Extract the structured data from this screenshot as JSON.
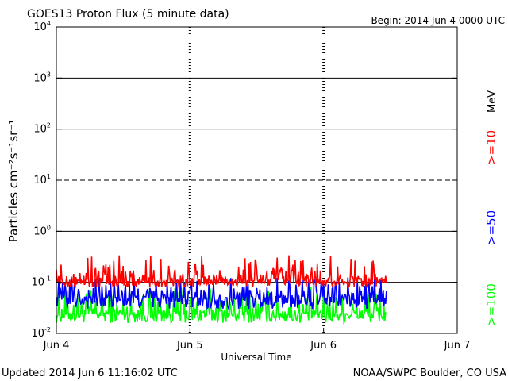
{
  "chart_data": {
    "type": "line",
    "title": "GOES13 Proton Flux (5 minute data)",
    "begin_label": "Begin: 2014 Jun 4 0000 UTC",
    "xlabel": "Universal Time",
    "ylabel": "Particles cm⁻²s⁻¹sr⁻¹",
    "footer_left": "Updated 2014 Jun  6 11:16:02 UTC",
    "footer_right": "NOAA/SWPC Boulder, CO USA",
    "units_label": "MeV",
    "x_ticks": [
      "Jun 4",
      "Jun 5",
      "Jun 6",
      "Jun 7"
    ],
    "xlim_days": [
      0,
      3
    ],
    "y_scale": "log",
    "ylim_exp": [
      -2,
      4
    ],
    "y_tick_base": "10",
    "y_tick_exponents": [
      "-2",
      "-1",
      "0",
      "1",
      "2",
      "3",
      "4"
    ],
    "data_end_day": 2.47,
    "series": [
      {
        "name": ">=10",
        "color": "#ff0000",
        "level": 0.11,
        "low": 0.08,
        "high": 0.35
      },
      {
        "name": ">=50",
        "color": "#0000ff",
        "level": 0.05,
        "low": 0.03,
        "high": 0.13
      },
      {
        "name": ">=100",
        "color": "#00ff00",
        "level": 0.025,
        "low": 0.016,
        "high": 0.08
      }
    ]
  }
}
